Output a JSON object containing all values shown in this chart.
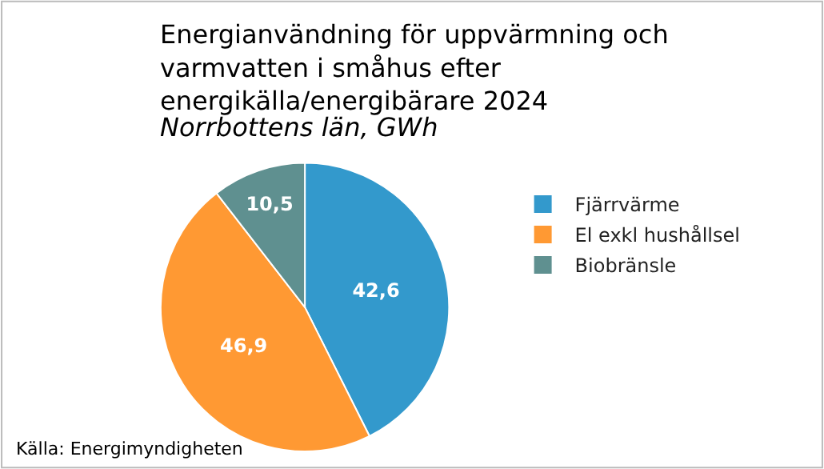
{
  "chart_data": {
    "type": "pie",
    "title": "Energianvändning för uppvärmning och\nvarmvatten i småhus efter\nenergikälla/energibärare 2024",
    "subtitle": "Norrbottens län, GWh",
    "categories": [
      "Fjärrvärme",
      "El exkl hushållsel",
      "Biobränsle"
    ],
    "values": [
      42.6,
      46.9,
      10.5
    ],
    "colors": [
      "#3399cc",
      "#ff9933",
      "#5f9090"
    ],
    "value_labels": [
      "42,6",
      "46,9",
      "10,5"
    ],
    "legend": "right",
    "annotations": [
      "Källa: Energimyndigheten"
    ]
  }
}
